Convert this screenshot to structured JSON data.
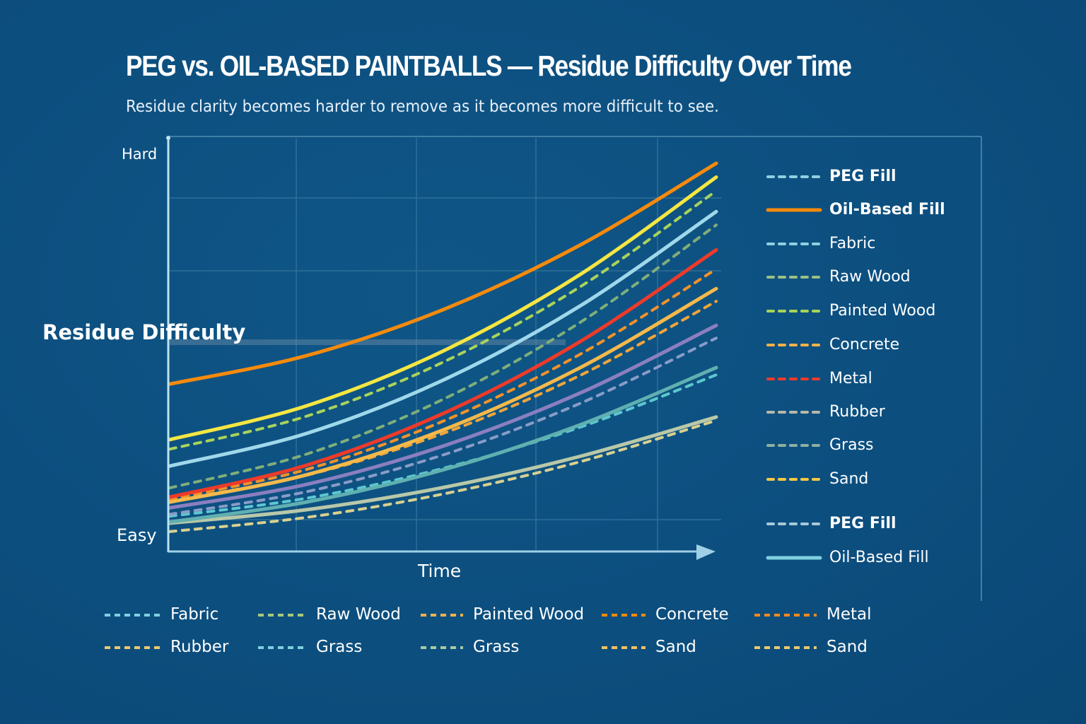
{
  "chart_data": {
    "type": "line",
    "title": "PEG vs. OIL-BASED PAINTBALLS — Residue Difficulty Over Time",
    "subtitle": "Residue clarity becomes harder to remove as it becomes more difficult to see.",
    "xlabel": "Time",
    "ylabel": "Residue Difficulty",
    "y_tick_labels": {
      "low": "Easy",
      "high": "Hard"
    },
    "xlim": [
      0,
      100
    ],
    "ylim": [
      0,
      100
    ],
    "grid": true,
    "x": [
      0,
      25,
      50,
      75,
      100
    ],
    "series": [
      {
        "color": "#f58a0c",
        "style": "solid",
        "values": [
          40,
          47.4,
          59.4,
          76.2,
          97.6
        ]
      },
      {
        "color": "#f5e642",
        "style": "solid",
        "values": [
          25.5,
          34.3,
          48.6,
          68.5,
          94
        ]
      },
      {
        "color": "#a9d35a",
        "style": "dashed",
        "values": [
          23,
          31.6,
          45.7,
          65.3,
          90.4
        ]
      },
      {
        "color": "#9fd8ea",
        "style": "solid",
        "values": [
          18.6,
          27.1,
          41,
          60.3,
          85
        ]
      },
      {
        "color": "#7fae7a",
        "style": "dashed",
        "values": [
          12.9,
          21.7,
          36,
          56,
          81.5
        ]
      },
      {
        "color": "#ee3a2a",
        "style": "solid",
        "values": [
          10.5,
          18.8,
          32.3,
          51,
          75
        ]
      },
      {
        "color": "#f2922a",
        "style": "dashed",
        "values": [
          10,
          17.7,
          30.3,
          47.7,
          70
        ]
      },
      {
        "color": "#f5b94a",
        "style": "solid",
        "values": [
          9.2,
          16.3,
          28,
          44.2,
          64.9
        ]
      },
      {
        "color": "#f0a53a",
        "style": "dashed",
        "values": [
          9.5,
          16.2,
          27.1,
          42.2,
          61.6
        ]
      },
      {
        "color": "#8a7fc0",
        "style": "solid",
        "values": [
          7.7,
          13.8,
          23.8,
          37.6,
          55.3
        ]
      },
      {
        "color": "#8a9cc8",
        "style": "dashed",
        "values": [
          6,
          11.9,
          21.5,
          34.9,
          52
        ]
      },
      {
        "color": "#5fb0b0",
        "style": "solid",
        "values": [
          4,
          9.2,
          17.6,
          29.3,
          44.3
        ]
      },
      {
        "color": "#5cc7d0",
        "style": "dashed",
        "values": [
          5.5,
          10.2,
          18,
          28.7,
          42.4
        ]
      },
      {
        "color": "#b8c8a8",
        "style": "solid",
        "values": [
          3.7,
          7.2,
          13,
          21.1,
          31.4
        ]
      },
      {
        "color": "#d8d090",
        "style": "dashed",
        "values": [
          1.5,
          5.2,
          11.3,
          19.7,
          30.5
        ]
      }
    ],
    "legend_right": [
      {
        "label": "PEG Fill",
        "color": "#8fd0e0",
        "style": "dashed",
        "bold": true
      },
      {
        "label": "Oil-Based Fill",
        "color": "#f58a0c",
        "style": "solid",
        "bold": true
      },
      {
        "label": "Fabric",
        "color": "#8fd0e0",
        "style": "dashed"
      },
      {
        "label": "Raw Wood",
        "color": "#9cbf84",
        "style": "dashed"
      },
      {
        "label": "Painted Wood",
        "color": "#a9d35a",
        "style": "dashed"
      },
      {
        "label": "Concrete",
        "color": "#f2b24a",
        "style": "dashed"
      },
      {
        "label": "Metal",
        "color": "#ee3a2a",
        "style": "dashed"
      },
      {
        "label": "Rubber",
        "color": "#b8b8a8",
        "style": "dashed"
      },
      {
        "label": "Grass",
        "color": "#8fb0a0",
        "style": "dashed"
      },
      {
        "label": "Sand",
        "color": "#f5c842",
        "style": "dashed"
      },
      {
        "label": "PEG Fill",
        "color": "#a8c8d8",
        "style": "dashed",
        "bold": true
      },
      {
        "label": "Oil-Based Fill",
        "color": "#7fd0e0",
        "style": "solid"
      }
    ],
    "legend_bottom": [
      {
        "label": "Fabric",
        "color": "#7fd0e0"
      },
      {
        "label": "Raw Wood",
        "color": "#a9c87a"
      },
      {
        "label": "Painted Wood",
        "color": "#f2b24a"
      },
      {
        "label": "Concrete",
        "color": "#f58a0c"
      },
      {
        "label": "Metal",
        "color": "#f58a1c"
      },
      {
        "label": "Rubber",
        "color": "#e8c870"
      },
      {
        "label": "Grass",
        "color": "#7fd0e0"
      },
      {
        "label": "Grass",
        "color": "#a8c8a0"
      },
      {
        "label": "Sand",
        "color": "#f2c060"
      },
      {
        "label": "Sand",
        "color": "#e8c870"
      }
    ]
  }
}
